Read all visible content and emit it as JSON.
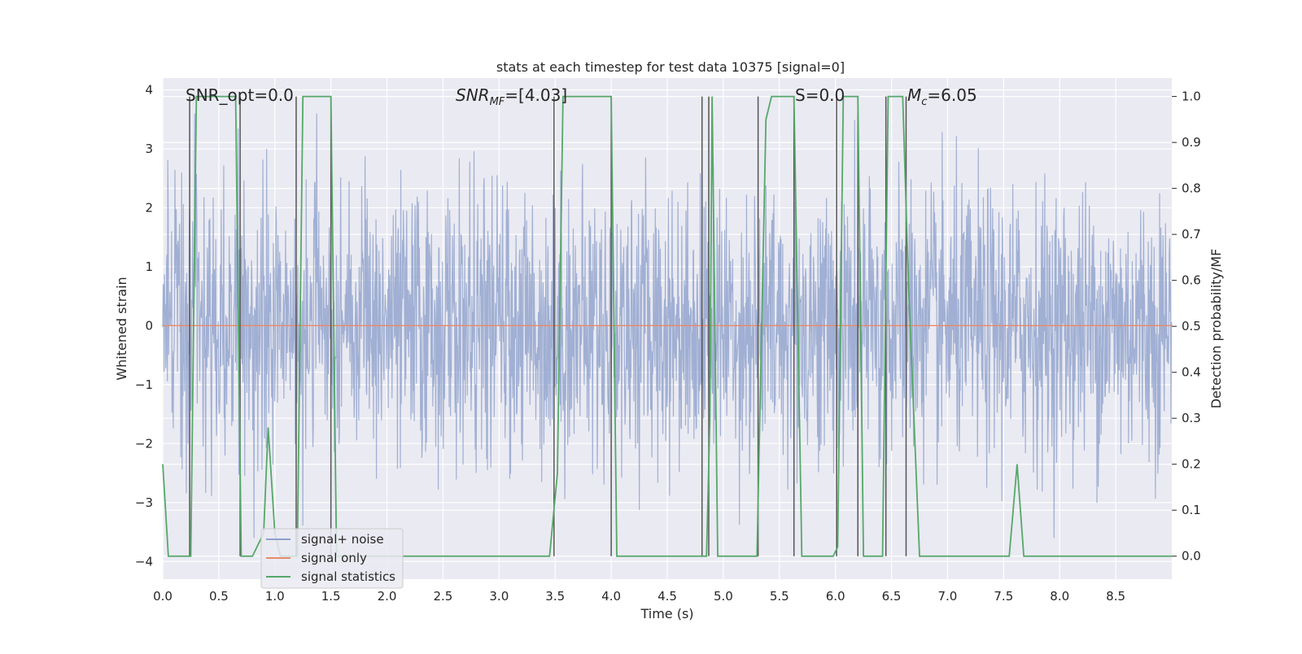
{
  "chart_data": {
    "type": "line",
    "title": "stats at each timestep for test data 10375 [signal=0]",
    "xlabel": "Time (s)",
    "ylabel": "Whitened strain",
    "y2label": "Detection probability/MF",
    "xlim": [
      0.0,
      9.0
    ],
    "ylim": [
      -4.3,
      4.2
    ],
    "y2lim": [
      -0.05,
      1.04
    ],
    "xticks": [
      "0.0",
      "0.5",
      "1.0",
      "1.5",
      "2.0",
      "2.5",
      "3.0",
      "3.5",
      "4.0",
      "4.5",
      "5.0",
      "5.5",
      "6.0",
      "6.5",
      "7.0",
      "7.5",
      "8.0",
      "8.5"
    ],
    "yticks": [
      "4",
      "3",
      "2",
      "1",
      "0",
      "−1",
      "−2",
      "−3",
      "−4"
    ],
    "y2ticks": [
      "1.0",
      "0.9",
      "0.8",
      "0.7",
      "0.6",
      "0.5",
      "0.4",
      "0.3",
      "0.2",
      "0.1",
      "0.0"
    ],
    "grid": true,
    "legend_position": "lower left",
    "annotations": {
      "snr_opt": "SNR_opt=0.0",
      "snr_mf_base": "SNR",
      "snr_mf_sub": "MF",
      "snr_mf_value": "=[4.03]",
      "s_value": "S=0.0",
      "mc_base": "M",
      "mc_sub": "c",
      "mc_value": "=6.05"
    },
    "series": [
      {
        "name": "signal+ noise",
        "color": "#8da0cb",
        "axis": "left",
        "description": "dense whitened noise, approx. between -2.5 and 2.5 with peaks near ±3.6",
        "amplitude_envelope": [
          -3.6,
          3.6
        ]
      },
      {
        "name": "signal only",
        "color": "#e78a6c",
        "axis": "left",
        "x": [
          0.0,
          9.0
        ],
        "y": [
          0.0,
          0.0
        ]
      },
      {
        "name": "signal statistics",
        "color": "#55a868",
        "axis": "right",
        "x": [
          0.0,
          0.05,
          0.25,
          0.3,
          0.65,
          0.7,
          0.75,
          0.8,
          0.9,
          0.94,
          1.0,
          1.05,
          1.1,
          1.2,
          1.25,
          1.5,
          1.55,
          1.6,
          1.75,
          3.45,
          3.52,
          3.57,
          4.0,
          4.05,
          4.1,
          4.3,
          4.75,
          4.85,
          4.88,
          4.9,
          4.95,
          5.3,
          5.38,
          5.43,
          5.6,
          5.63,
          5.7,
          5.75,
          5.98,
          6.02,
          6.07,
          6.2,
          6.25,
          6.42,
          6.47,
          6.6,
          6.65,
          6.75,
          6.8,
          7.0,
          7.55,
          7.62,
          7.68,
          7.75,
          9.0
        ],
        "y": [
          0.2,
          0.0,
          0.0,
          1.0,
          1.0,
          0.0,
          0.0,
          0.0,
          0.05,
          0.28,
          0.05,
          0.0,
          0.0,
          0.0,
          1.0,
          1.0,
          0.0,
          0.0,
          0.0,
          0.0,
          0.18,
          1.0,
          1.0,
          0.0,
          0.0,
          0.0,
          0.0,
          0.0,
          0.3,
          1.0,
          0.0,
          0.0,
          0.95,
          1.0,
          1.0,
          1.0,
          0.0,
          0.0,
          0.0,
          0.02,
          1.0,
          1.0,
          0.0,
          0.0,
          1.0,
          1.0,
          0.6,
          0.0,
          0.0,
          0.0,
          0.0,
          0.2,
          0.0,
          0.0,
          0.0
        ]
      }
    ],
    "vertical_lines": {
      "color": "#555555",
      "x": [
        0.24,
        0.69,
        1.19,
        1.5,
        3.49,
        4.0,
        4.81,
        4.87,
        5.31,
        5.63,
        6.01,
        6.2,
        6.45,
        6.63
      ]
    }
  }
}
